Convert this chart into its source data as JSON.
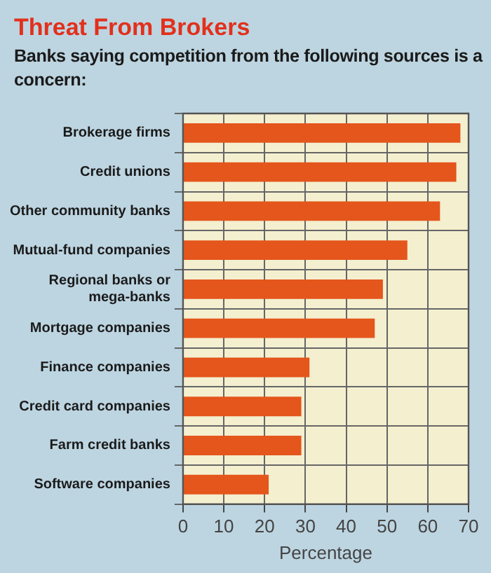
{
  "chart_data": {
    "type": "bar",
    "orientation": "horizontal",
    "title": "Threat From Brokers",
    "subtitle": "Banks saying competition from the following sources is a concern:",
    "xlabel": "Percentage",
    "categories": [
      "Brokerage firms",
      "Credit unions",
      "Other community banks",
      "Mutual-fund companies",
      "Regional banks or mega-banks",
      "Mortgage companies",
      "Finance companies",
      "Credit card companies",
      "Farm credit banks",
      "Software companies"
    ],
    "values": [
      68,
      67,
      63,
      55,
      49,
      47,
      31,
      29,
      29,
      21
    ],
    "color": "#e4561c",
    "xlim": [
      0,
      70
    ],
    "xticks": [
      0,
      10,
      20,
      30,
      40,
      50,
      60,
      70
    ],
    "grid": true,
    "legend": false
  }
}
